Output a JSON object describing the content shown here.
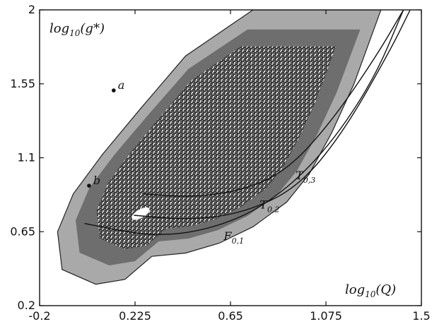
{
  "chart_data": {
    "type": "heatmap",
    "title": "",
    "xlabel": "log10(Q)",
    "ylabel": "log10(g*)",
    "xlabel_parts": {
      "base": "log",
      "sub": "10",
      "arg": "(Q)"
    },
    "ylabel_parts": {
      "base": "log",
      "sub": "10",
      "arg": "(g*)"
    },
    "xlim": [
      -0.2,
      1.5
    ],
    "ylim": [
      0.2,
      2.0
    ],
    "xticks": [
      -0.2,
      0.225,
      0.65,
      1.075,
      1.5
    ],
    "xtick_labels": [
      "-0.2",
      "0.225",
      "0.65",
      "1.075",
      "1.5"
    ],
    "yticks": [
      0.2,
      0.65,
      1.1,
      1.55,
      2.0
    ],
    "ytick_labels": [
      "0.2",
      "0.65",
      "1.1",
      "1.55",
      "2"
    ],
    "grid": false,
    "legend": "none",
    "shading": {
      "levels": [
        "light-gray",
        "medium-gray",
        "dark-gray",
        "white"
      ]
    },
    "region_boundary": [
      [
        0.3,
        0.5
      ],
      [
        0.45,
        0.52
      ],
      [
        0.6,
        0.58
      ],
      [
        0.75,
        0.68
      ],
      [
        0.9,
        0.83
      ],
      [
        1.0,
        1.0
      ],
      [
        1.1,
        1.25
      ],
      [
        1.2,
        1.55
      ],
      [
        1.28,
        1.85
      ],
      [
        1.32,
        2.0
      ],
      [
        0.75,
        2.0
      ],
      [
        0.45,
        1.72
      ],
      [
        0.25,
        1.4
      ],
      [
        0.08,
        1.12
      ],
      [
        -0.05,
        0.88
      ],
      [
        -0.12,
        0.65
      ],
      [
        -0.1,
        0.42
      ],
      [
        0.05,
        0.33
      ],
      [
        0.18,
        0.36
      ]
    ],
    "curves": [
      {
        "name": "F",
        "sub": "0,1",
        "points": [
          [
            0.0,
            0.7
          ],
          [
            0.3,
            0.62
          ],
          [
            0.55,
            0.66
          ],
          [
            0.8,
            0.8
          ],
          [
            1.05,
            1.1
          ],
          [
            1.28,
            1.55
          ],
          [
            1.42,
            2.0
          ]
        ]
      },
      {
        "name": "T",
        "sub": "0,2",
        "points": [
          [
            0.22,
            0.75
          ],
          [
            0.48,
            0.72
          ],
          [
            0.72,
            0.77
          ],
          [
            0.95,
            0.92
          ],
          [
            1.15,
            1.25
          ],
          [
            1.36,
            1.75
          ],
          [
            1.45,
            2.0
          ]
        ]
      },
      {
        "name": "T",
        "sub": "0,3",
        "points": [
          [
            0.26,
            0.88
          ],
          [
            0.48,
            0.86
          ],
          [
            0.7,
            0.9
          ],
          [
            0.9,
            1.02
          ],
          [
            1.1,
            1.32
          ],
          [
            1.3,
            1.72
          ],
          [
            1.42,
            2.0
          ]
        ]
      }
    ],
    "curve_labels": [
      {
        "name": "F",
        "sub": "0,1",
        "x": 0.62,
        "y": 0.6
      },
      {
        "name": "T",
        "sub": "0,2",
        "x": 0.78,
        "y": 0.79
      },
      {
        "name": "T",
        "sub": "0,3",
        "x": 0.94,
        "y": 0.97
      }
    ],
    "points": [
      {
        "label": "a",
        "x": 0.13,
        "y": 1.51
      },
      {
        "label": "b",
        "x": 0.02,
        "y": 0.93
      }
    ]
  }
}
